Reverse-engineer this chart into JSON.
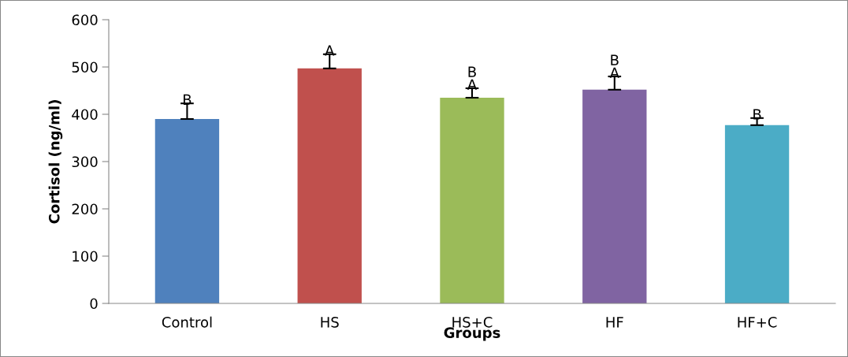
{
  "chart_data": {
    "type": "bar",
    "xlabel": "Groups",
    "ylabel": "Cortisol (ng/ml)",
    "categories": [
      "Control",
      "HS",
      "HS+C",
      "HF",
      "HF+C"
    ],
    "values": [
      390,
      497,
      435,
      452,
      377
    ],
    "colors": [
      "#4f81bd",
      "#c0504d",
      "#9bbb59",
      "#8064a2",
      "#4bacc6"
    ],
    "errors": [
      [
        390,
        423
      ],
      [
        497,
        527
      ],
      [
        435,
        455
      ],
      [
        452,
        480
      ],
      [
        377,
        392
      ]
    ],
    "ylim": [
      0,
      600
    ],
    "yticks": [
      0,
      100,
      200,
      300,
      400,
      500,
      600
    ],
    "grid": false,
    "legend": false,
    "annotations": [
      {
        "text": "B",
        "x": "Control",
        "y": 390
      },
      {
        "text": "A",
        "x": "HS",
        "y": 497
      },
      {
        "text": "B\nA",
        "x": "HS+C",
        "y": 435
      },
      {
        "text": "B\nA",
        "x": "HF",
        "y": 452
      },
      {
        "text": "B",
        "x": "HF+C",
        "y": 377
      }
    ]
  }
}
